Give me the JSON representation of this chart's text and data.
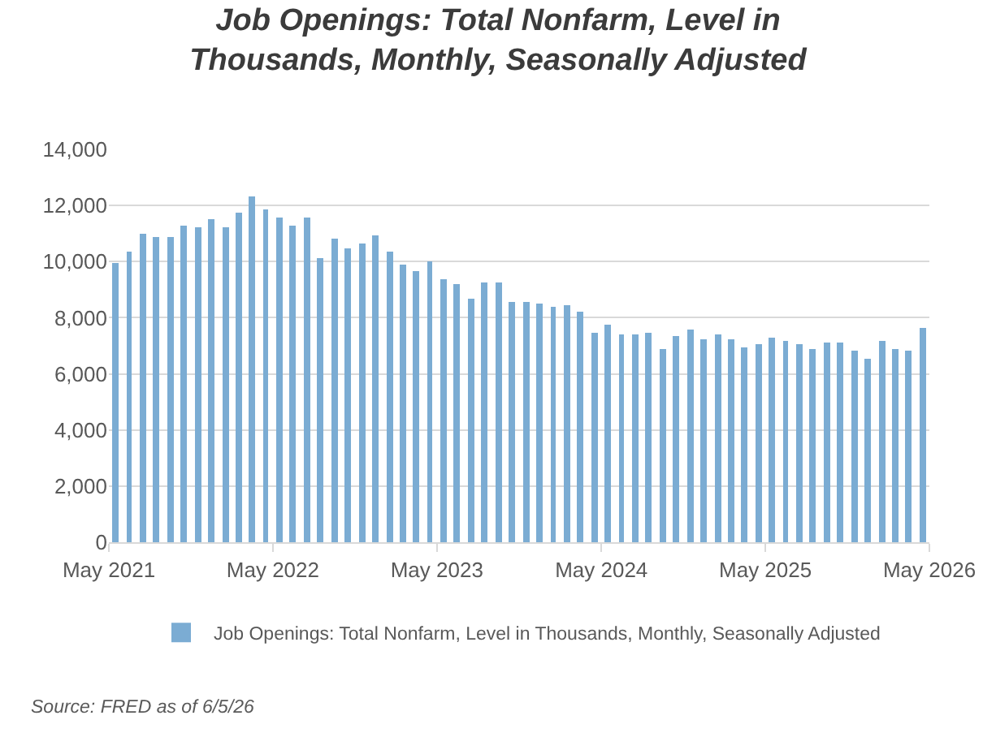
{
  "chart_data": {
    "type": "bar",
    "title": "Job Openings: Total Nonfarm, Level in\nThousands, Monthly, Seasonally Adjusted",
    "x": [
      "2021-05-15",
      "2021-06-15",
      "2021-07-15",
      "2021-08-15",
      "2021-09-15",
      "2021-10-15",
      "2021-11-15",
      "2021-12-15",
      "2022-01-15",
      "2022-02-15",
      "2022-03-15",
      "2022-04-15",
      "2022-05-15",
      "2022-06-15",
      "2022-07-15",
      "2022-08-15",
      "2022-09-15",
      "2022-10-15",
      "2022-11-15",
      "2022-12-15",
      "2023-01-15",
      "2023-02-15",
      "2023-03-15",
      "2023-04-15",
      "2023-05-15",
      "2023-06-15",
      "2023-07-15",
      "2023-08-15",
      "2023-09-15",
      "2023-10-15",
      "2023-11-15",
      "2023-12-15",
      "2024-01-15",
      "2024-02-15",
      "2024-03-15",
      "2024-04-15",
      "2024-05-15",
      "2024-06-15",
      "2024-07-15",
      "2024-08-15",
      "2024-09-15",
      "2024-10-15",
      "2024-11-15",
      "2024-12-15",
      "2025-01-15",
      "2025-02-15",
      "2025-03-15",
      "2025-04-15",
      "2025-05-15",
      "2025-06-15",
      "2025-07-15",
      "2025-08-15",
      "2025-09-15",
      "2025-10-15",
      "2025-11-15",
      "2025-12-15",
      "2026-01-15",
      "2026-02-15",
      "2026-03-15",
      "2026-04-15"
    ],
    "series": [
      {
        "name": "Job Openings: Total Nonfarm, Level in Thousands, Monthly, Seasonally Adjusted",
        "color": "#7bacd3",
        "values": [
          9950,
          10330,
          10990,
          10860,
          10860,
          11280,
          11200,
          11510,
          11200,
          11750,
          12330,
          11840,
          11570,
          11260,
          11570,
          10100,
          10800,
          10470,
          10640,
          10930,
          10350,
          9890,
          9650,
          10000,
          9360,
          9190,
          8650,
          9230,
          9230,
          8590,
          8590,
          8530,
          8360,
          8420,
          8190,
          7490,
          7780,
          7430,
          7430,
          7490,
          6910,
          7370,
          7550,
          7260,
          7430,
          7260,
          6970,
          7080,
          7310,
          7200,
          7080,
          6910,
          7140,
          7140,
          6850,
          6560,
          7200,
          6910,
          6850,
          7610
        ]
      }
    ],
    "xlim": [
      "2021-05-01",
      "2026-05-01"
    ],
    "xticks": [
      {
        "value": "2021-05-01",
        "label": "May 2021"
      },
      {
        "value": "2022-05-01",
        "label": "May 2022"
      },
      {
        "value": "2023-05-01",
        "label": "May 2023"
      },
      {
        "value": "2024-05-01",
        "label": "May 2024"
      },
      {
        "value": "2025-05-01",
        "label": "May 2025"
      },
      {
        "value": "2026-05-01",
        "label": "May 2026"
      }
    ],
    "ylim": [
      0,
      14000
    ],
    "yticks": [
      {
        "value": 0,
        "label": "0"
      },
      {
        "value": 2000,
        "label": "2,000"
      },
      {
        "value": 4000,
        "label": "4,000"
      },
      {
        "value": 6000,
        "label": "6,000"
      },
      {
        "value": 8000,
        "label": "8,000"
      },
      {
        "value": 10000,
        "label": "10,000"
      },
      {
        "value": 12000,
        "label": "12,000"
      },
      {
        "value": 14000,
        "label": "14,000"
      }
    ],
    "grid": "y",
    "legend": "bottom",
    "annotations": [
      "Source: FRED as of 6/5/26"
    ]
  }
}
